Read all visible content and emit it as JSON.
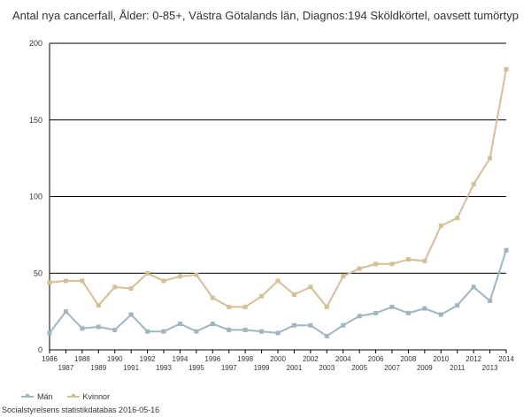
{
  "chart_data": {
    "type": "line",
    "title": "Antal nya cancerfall, Ålder: 0-85+, Västra Götalands län, Diagnos:194 Sköldkörtel, oavsett tumörtyp",
    "xlabel": "",
    "ylabel": "",
    "ylim": [
      0,
      200
    ],
    "yticks": [
      0,
      50,
      100,
      150,
      200
    ],
    "grid": "horizontal",
    "legend_position": "bottom-left",
    "x": [
      1986,
      1987,
      1988,
      1989,
      1990,
      1991,
      1992,
      1993,
      1994,
      1995,
      1996,
      1997,
      1998,
      1999,
      2000,
      2001,
      2002,
      2003,
      2004,
      2005,
      2006,
      2007,
      2008,
      2009,
      2010,
      2011,
      2012,
      2013,
      2014
    ],
    "series": [
      {
        "name": "Män",
        "color": "#9fb6c2",
        "values": [
          11,
          25,
          14,
          15,
          13,
          23,
          12,
          12,
          17,
          12,
          17,
          13,
          13,
          12,
          11,
          16,
          16,
          9,
          16,
          22,
          24,
          28,
          24,
          27,
          23,
          29,
          41,
          32,
          65
        ]
      },
      {
        "name": "Kvinnor",
        "color": "#d4bf96",
        "values": [
          44,
          45,
          45,
          29,
          41,
          40,
          50,
          45,
          48,
          49,
          34,
          28,
          28,
          35,
          45,
          36,
          41,
          28,
          48,
          53,
          56,
          56,
          59,
          58,
          81,
          86,
          108,
          125,
          183
        ]
      }
    ]
  },
  "source_note": "Socialstyrelsens statistikdatabas 2016-05-16"
}
